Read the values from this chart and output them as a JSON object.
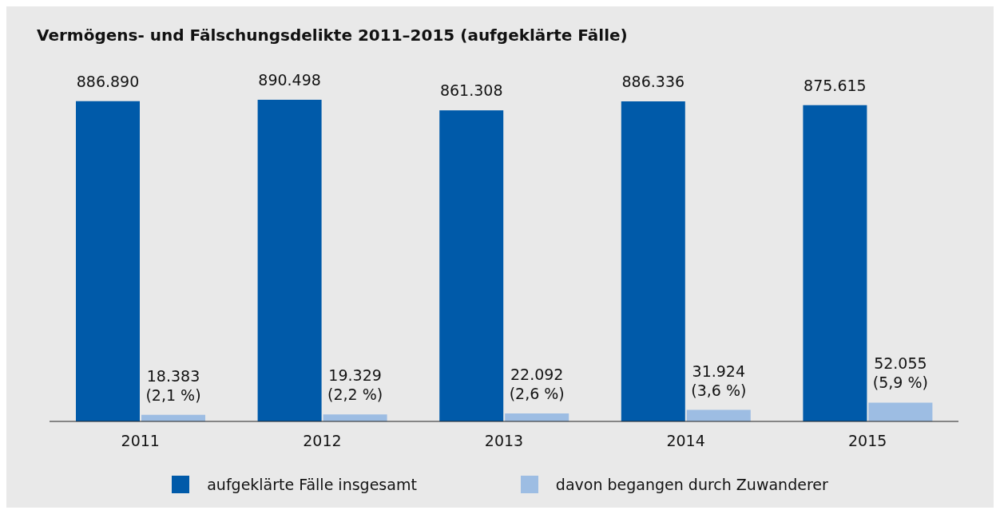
{
  "chart_data": {
    "type": "bar",
    "title": "Vermögens- und Fälschungsdelikte 2011–2015 (aufgeklärte Fälle)",
    "categories": [
      "2011",
      "2012",
      "2013",
      "2014",
      "2015"
    ],
    "series": [
      {
        "name": "aufgeklärte Fälle insgesamt",
        "color": "#005aa9",
        "values": [
          886890,
          890498,
          861308,
          886336,
          875615
        ],
        "value_labels": [
          "886.890",
          "890.498",
          "861.308",
          "886.336",
          "875.615"
        ]
      },
      {
        "name": "davon begangen durch Zuwanderer",
        "color": "#9dbde3",
        "values": [
          18383,
          19329,
          22092,
          31924,
          52055
        ],
        "value_labels": [
          "18.383\n(2,1 %)",
          "19.329\n(2,2 %)",
          "22.092\n(2,6 %)",
          "31.924\n(3,6 %)",
          "52.055\n(5,9 %)"
        ]
      }
    ],
    "legend": "bottom",
    "grid": false,
    "tick_labels": "x"
  }
}
